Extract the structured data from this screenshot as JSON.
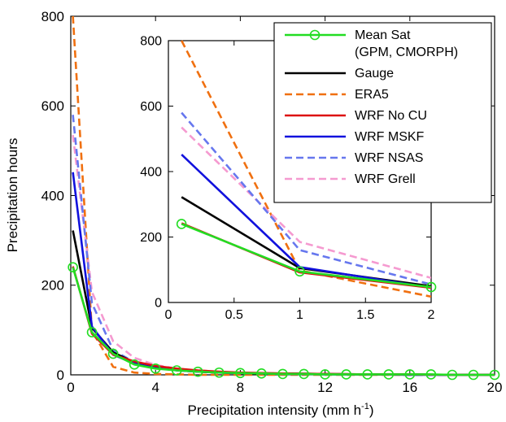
{
  "chart_data": [
    {
      "type": "line",
      "role": "main",
      "xlabel": "Precipitation intensity (mm h",
      "xlabel_sup": "-1",
      "xlabel_end": ")",
      "ylabel": "Precipitation hours",
      "xlim": [
        0,
        20
      ],
      "ylim": [
        0,
        800
      ],
      "xticks": [
        0,
        4,
        8,
        12,
        16,
        20
      ],
      "xtick_labels": [
        "0",
        "4",
        "8",
        "12",
        "16",
        "20"
      ],
      "yticks": [
        0,
        200,
        400,
        600,
        800
      ],
      "ytick_labels": [
        "0",
        "200",
        "400",
        "600",
        "800"
      ],
      "grid": false,
      "series": [
        {
          "name": "Mean Sat\n(GPM, CMORPH)",
          "color": "#22dd22",
          "dash": "solid",
          "marker": "circle",
          "x": [
            0.1,
            1,
            2,
            3,
            4,
            5,
            6,
            7,
            8,
            9,
            10,
            11,
            12,
            13,
            14,
            15,
            16,
            17,
            18,
            19,
            20
          ],
          "y": [
            240,
            95,
            47,
            23,
            14,
            10,
            7,
            5,
            4,
            3,
            2,
            2,
            1,
            1,
            1,
            1,
            1,
            1,
            0,
            0,
            0
          ]
        },
        {
          "name": "Gauge",
          "color": "#000000",
          "dash": "solid",
          "marker": "none",
          "x": [
            0.1,
            1,
            2,
            3,
            4,
            5,
            6,
            7,
            8,
            10,
            12,
            14,
            16,
            18,
            20
          ],
          "y": [
            322,
            105,
            50,
            28,
            16,
            11,
            7,
            5,
            4,
            3,
            2,
            1,
            1,
            0,
            0
          ]
        },
        {
          "name": "ERA5",
          "color": "#f07010",
          "dash": "dashed",
          "marker": "none",
          "x": [
            0.1,
            1,
            2,
            3,
            4,
            5,
            6,
            8,
            10,
            12,
            14,
            16,
            18,
            20
          ],
          "y": [
            800,
            98,
            18,
            5,
            2,
            1,
            0,
            0,
            0,
            0,
            0,
            0,
            0,
            0
          ]
        },
        {
          "name": "WRF No CU",
          "color": "#dd1111",
          "dash": "solid",
          "marker": "none",
          "x": [
            0.1,
            1,
            2,
            3,
            4,
            5,
            6,
            7,
            8,
            10,
            12,
            14,
            16,
            18,
            20
          ],
          "y": [
            242,
            92,
            45,
            30,
            20,
            14,
            10,
            7,
            5,
            3,
            2,
            1,
            1,
            0,
            0
          ]
        },
        {
          "name": "WRF MSKF",
          "color": "#1111dd",
          "dash": "solid",
          "marker": "none",
          "x": [
            0.1,
            1,
            2,
            3,
            4,
            5,
            6,
            7,
            8,
            10,
            12,
            14,
            16,
            18,
            20
          ],
          "y": [
            452,
            108,
            45,
            25,
            15,
            10,
            7,
            5,
            4,
            2,
            1,
            1,
            0,
            0,
            0
          ]
        },
        {
          "name": "WRF NSAS",
          "color": "#6677ee",
          "dash": "dashed",
          "marker": "none",
          "x": [
            0.1,
            1,
            2,
            3,
            4,
            5,
            6,
            7,
            8,
            10,
            12,
            14,
            16,
            18,
            20
          ],
          "y": [
            580,
            160,
            55,
            28,
            16,
            10,
            7,
            5,
            4,
            2,
            1,
            1,
            0,
            0,
            0
          ]
        },
        {
          "name": "WRF Grell",
          "color": "#f59ad0",
          "dash": "dashed",
          "marker": "none",
          "x": [
            0.1,
            1,
            2,
            3,
            4,
            5,
            6,
            7,
            8,
            10,
            12,
            14,
            16,
            18,
            20
          ],
          "y": [
            535,
            185,
            75,
            38,
            22,
            14,
            9,
            6,
            4,
            3,
            2,
            1,
            1,
            0,
            0
          ]
        }
      ]
    },
    {
      "type": "line",
      "role": "inset",
      "xlim": [
        0,
        2
      ],
      "ylim": [
        0,
        800
      ],
      "xticks": [
        0,
        0.5,
        1,
        1.5,
        2
      ],
      "xtick_labels": [
        "0",
        "0.5",
        "1",
        "1.5",
        "2"
      ],
      "yticks": [
        0,
        200,
        400,
        600,
        800
      ],
      "ytick_labels": [
        "0",
        "200",
        "400",
        "600",
        "800"
      ],
      "legend_position": "top-right",
      "series": [
        {
          "name": "Mean Sat\n(GPM, CMORPH)",
          "color": "#22dd22",
          "dash": "solid",
          "marker": "circle",
          "x": [
            0.1,
            1,
            2
          ],
          "y": [
            240,
            95,
            47
          ]
        },
        {
          "name": "Gauge",
          "color": "#000000",
          "dash": "solid",
          "marker": "none",
          "x": [
            0.1,
            1,
            2
          ],
          "y": [
            322,
            105,
            50
          ]
        },
        {
          "name": "ERA5",
          "color": "#f07010",
          "dash": "dashed",
          "marker": "none",
          "x": [
            0.1,
            1,
            2
          ],
          "y": [
            800,
            98,
            18
          ]
        },
        {
          "name": "WRF No CU",
          "color": "#dd1111",
          "dash": "solid",
          "marker": "none",
          "x": [
            0.1,
            1,
            2
          ],
          "y": [
            242,
            92,
            45
          ]
        },
        {
          "name": "WRF MSKF",
          "color": "#1111dd",
          "dash": "solid",
          "marker": "none",
          "x": [
            0.1,
            1,
            2
          ],
          "y": [
            452,
            108,
            45
          ]
        },
        {
          "name": "WRF NSAS",
          "color": "#6677ee",
          "dash": "dashed",
          "marker": "none",
          "x": [
            0.1,
            1,
            2
          ],
          "y": [
            580,
            160,
            55
          ]
        },
        {
          "name": "WRF Grell",
          "color": "#f59ad0",
          "dash": "dashed",
          "marker": "none",
          "x": [
            0.1,
            1,
            2
          ],
          "y": [
            535,
            185,
            75
          ]
        }
      ]
    }
  ]
}
